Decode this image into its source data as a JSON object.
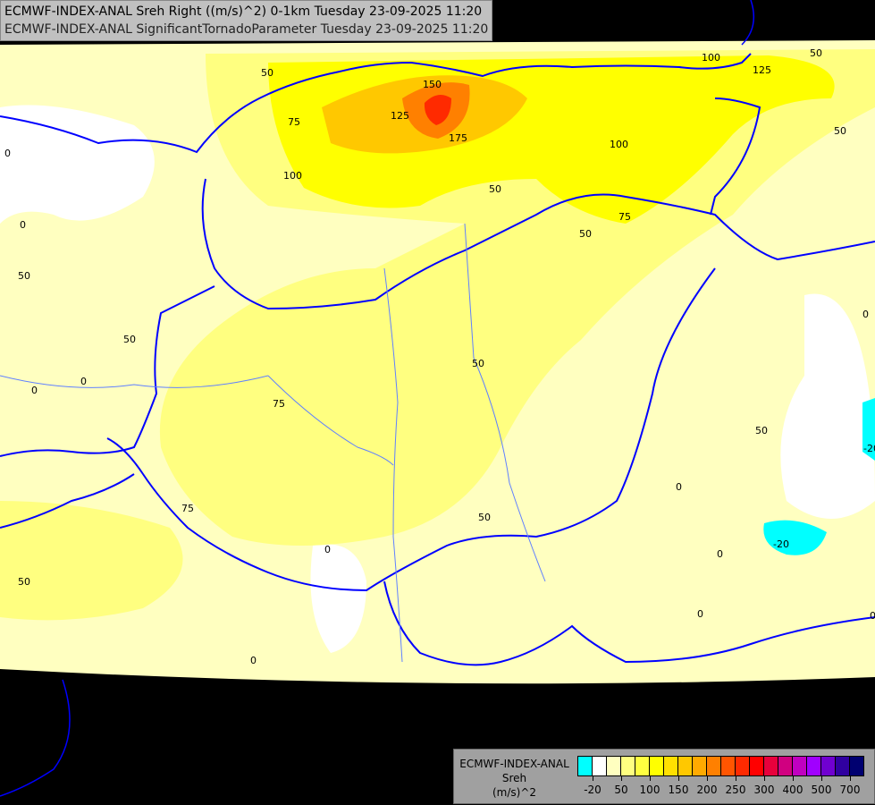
{
  "title": {
    "line1": "ECMWF-INDEX-ANAL Sreh Right ((m/s)^2) 0-1km Tuesday 23-09-2025 11:20",
    "line2": "ECMWF-INDEX-ANAL SignificantTornadoParameter Tuesday 23-09-2025 11:20"
  },
  "legend": {
    "model": "ECMWF-INDEX-ANAL",
    "variable": "Sreh",
    "unit": "(m/s)^2",
    "colors": [
      "#00ffff",
      "#ffffff",
      "#ffffc0",
      "#ffff80",
      "#ffff40",
      "#ffff00",
      "#ffe000",
      "#ffc800",
      "#ffaa00",
      "#ff8000",
      "#ff5500",
      "#ff2a00",
      "#ff0000",
      "#e8003c",
      "#d00080",
      "#c000c0",
      "#a000ff",
      "#7000d0",
      "#3000a0",
      "#000070"
    ],
    "tick_labels": [
      "-20",
      "50",
      "100",
      "150",
      "200",
      "250",
      "300",
      "400",
      "500",
      "700"
    ]
  },
  "map": {
    "contour_labels": [
      "50",
      "75",
      "100",
      "125",
      "150",
      "175",
      "100",
      "125",
      "50",
      "50",
      "100",
      "75",
      "50",
      "0",
      "0",
      "50",
      "50",
      "0",
      "0",
      "75",
      "75",
      "50",
      "50",
      "50",
      "0",
      "0",
      "0",
      "50",
      "-20",
      "-20",
      "0",
      "0",
      "0",
      "0",
      "50"
    ],
    "colors": {
      "background": "#000000",
      "border": "#0000ff",
      "river": "#6080ff",
      "low": "#ffffc0",
      "mid": "#ffff80",
      "high": "#ffff00",
      "peak": "#ff8000",
      "max": "#ff2a00",
      "neg": "#00ffff"
    }
  }
}
